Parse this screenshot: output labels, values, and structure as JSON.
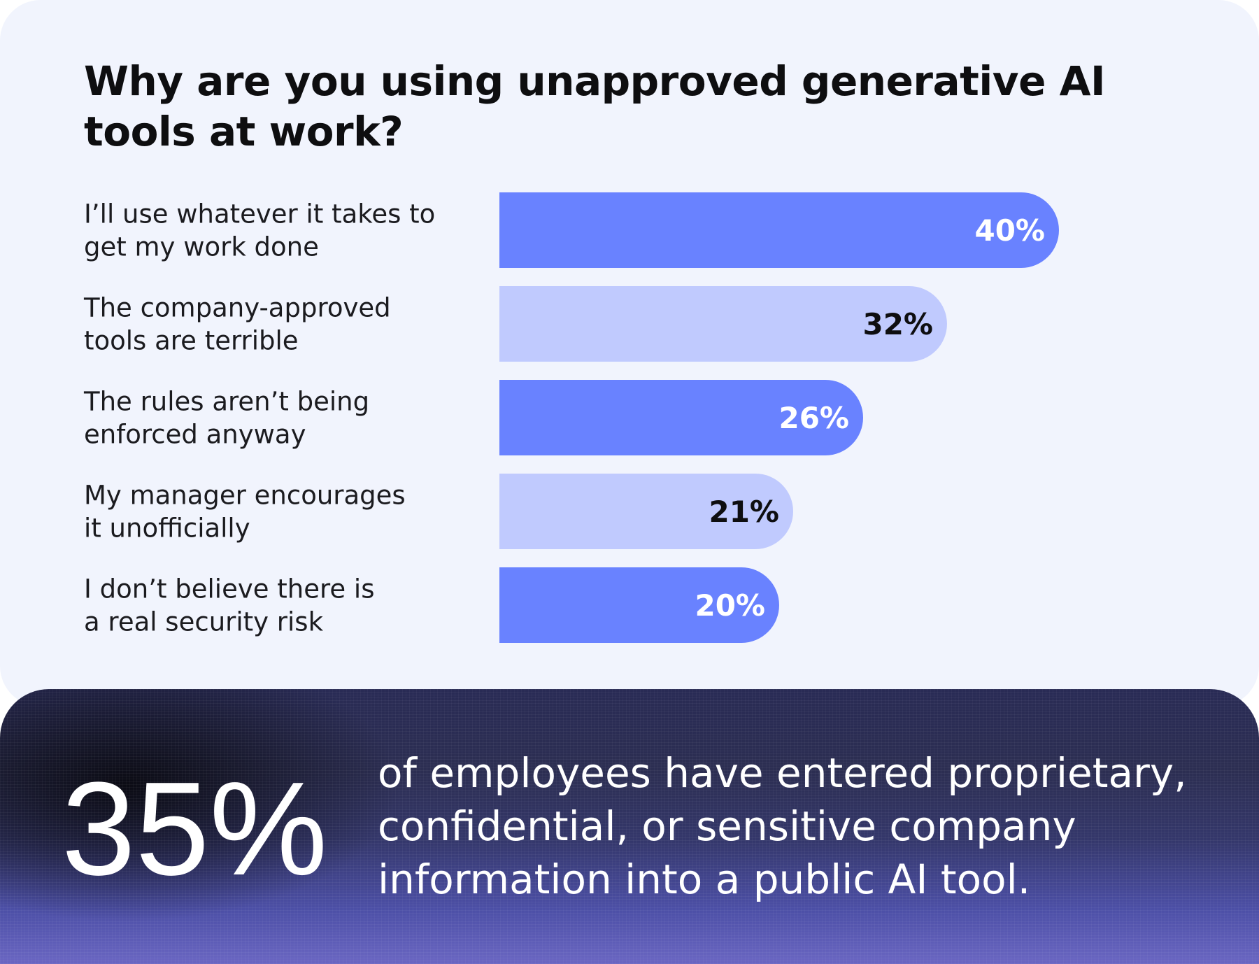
{
  "chart_data": {
    "type": "bar",
    "orientation": "horizontal",
    "title": "Why are you using unapproved generative AI tools at work?",
    "categories": [
      [
        "I’ll use whatever it takes to",
        "get my work done"
      ],
      [
        "The company-approved",
        "tools are terrible"
      ],
      [
        "The rules aren’t being",
        "enforced anyway"
      ],
      [
        "My manager encourages",
        "it unofficially"
      ],
      [
        "I don’t believe there is",
        "a real security risk"
      ]
    ],
    "values": [
      40,
      32,
      26,
      21,
      20
    ],
    "value_labels": [
      "40%",
      "32%",
      "26%",
      "21%",
      "20%"
    ],
    "unit": "%",
    "xlim": [
      0,
      40
    ],
    "grid": false,
    "legend": "none",
    "bar_colors": [
      "#6982ff",
      "#c0cafe",
      "#6982ff",
      "#c0cafe",
      "#6982ff"
    ],
    "label_colors": [
      "#ffffff",
      "#0e0e10",
      "#ffffff",
      "#0e0e10",
      "#ffffff"
    ]
  },
  "stat": {
    "value": "35%",
    "description": "of employees have entered proprietary, confidential, or sensitive company information into a public AI tool."
  }
}
